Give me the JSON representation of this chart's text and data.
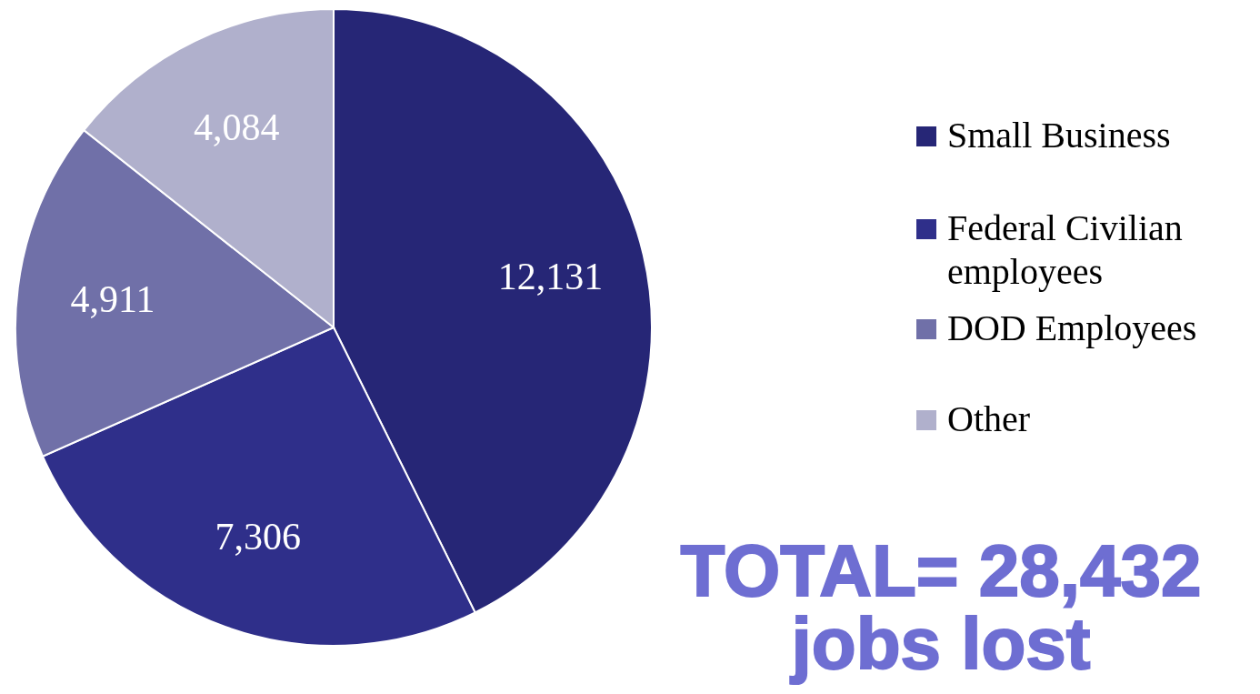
{
  "chart_data": {
    "type": "pie",
    "categories": [
      "Small Business",
      "Federal Civilian employees",
      "DOD Employees",
      "Other"
    ],
    "values": [
      12131,
      7306,
      4911,
      4084
    ],
    "value_labels": [
      "12,131",
      "7,306",
      "4,911",
      "4,084"
    ],
    "colors": [
      "#262676",
      "#2f2f8a",
      "#7070a8",
      "#b0b0cc"
    ],
    "legend": "right",
    "annotations": [
      "TOTAL= 28,432 jobs lost"
    ]
  }
}
